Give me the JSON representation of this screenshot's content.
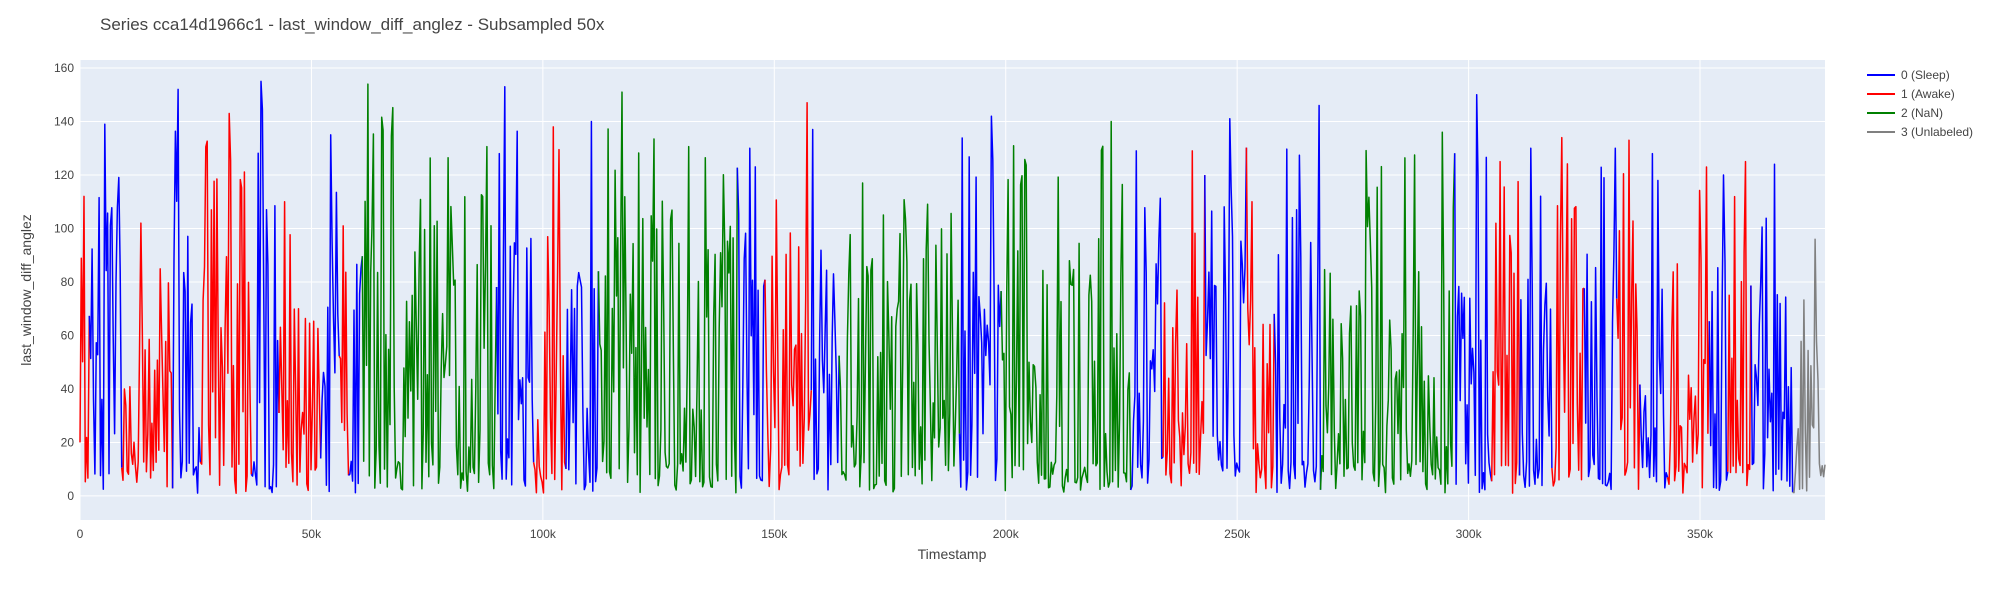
{
  "chart_data": {
    "type": "line",
    "title": "Series cca14d1966c1 - last_window_diff_anglez - Subsampled 50x",
    "xlabel": "Timestamp",
    "ylabel": "last_window_diff_anglez",
    "xlim": [
      0,
      377000
    ],
    "ylim": [
      -9,
      163
    ],
    "grid": true,
    "plot_background": "#e5ecf6",
    "legend_position": "top-right",
    "x_ticks": [
      {
        "value": 0,
        "label": "0"
      },
      {
        "value": 50000,
        "label": "50k"
      },
      {
        "value": 100000,
        "label": "100k"
      },
      {
        "value": 150000,
        "label": "150k"
      },
      {
        "value": 200000,
        "label": "200k"
      },
      {
        "value": 250000,
        "label": "250k"
      },
      {
        "value": 300000,
        "label": "300k"
      },
      {
        "value": 350000,
        "label": "350k"
      }
    ],
    "y_ticks": [
      {
        "value": 0,
        "label": "0"
      },
      {
        "value": 20,
        "label": "20"
      },
      {
        "value": 40,
        "label": "40"
      },
      {
        "value": 60,
        "label": "60"
      },
      {
        "value": 80,
        "label": "80"
      },
      {
        "value": 100,
        "label": "100"
      },
      {
        "value": 120,
        "label": "120"
      },
      {
        "value": 140,
        "label": "140"
      },
      {
        "value": 160,
        "label": "160"
      }
    ],
    "series": [
      {
        "name": "0 (Sleep)",
        "color": "#0000ff"
      },
      {
        "name": "1 (Awake)",
        "color": "#ff0000"
      },
      {
        "name": "2 (NaN)",
        "color": "#008000"
      },
      {
        "name": "3 (Unlabeled)",
        "color": "#808080"
      }
    ],
    "segments": [
      {
        "series": 1,
        "x_start": 0,
        "x_end": 2000,
        "peak": 112
      },
      {
        "series": 0,
        "x_start": 2000,
        "x_end": 9000,
        "peak": 139
      },
      {
        "series": 1,
        "x_start": 9000,
        "x_end": 20000,
        "peak": 102
      },
      {
        "series": 0,
        "x_start": 20000,
        "x_end": 26000,
        "peak": 152
      },
      {
        "series": 1,
        "x_start": 26000,
        "x_end": 37000,
        "peak": 143
      },
      {
        "series": 0,
        "x_start": 37000,
        "x_end": 43000,
        "peak": 155
      },
      {
        "series": 1,
        "x_start": 43000,
        "x_end": 52000,
        "peak": 110
      },
      {
        "series": 0,
        "x_start": 52000,
        "x_end": 56000,
        "peak": 135
      },
      {
        "series": 1,
        "x_start": 56000,
        "x_end": 58000,
        "peak": 134
      },
      {
        "series": 0,
        "x_start": 58000,
        "x_end": 61000,
        "peak": 128
      },
      {
        "series": 2,
        "x_start": 61000,
        "x_end": 90000,
        "peak": 154
      },
      {
        "series": 0,
        "x_start": 90000,
        "x_end": 98000,
        "peak": 153
      },
      {
        "series": 1,
        "x_start": 98000,
        "x_end": 105000,
        "peak": 138
      },
      {
        "series": 0,
        "x_start": 105000,
        "x_end": 112000,
        "peak": 140
      },
      {
        "series": 2,
        "x_start": 112000,
        "x_end": 142000,
        "peak": 151
      },
      {
        "series": 0,
        "x_start": 142000,
        "x_end": 148000,
        "peak": 130
      },
      {
        "series": 1,
        "x_start": 148000,
        "x_end": 158000,
        "peak": 147
      },
      {
        "series": 0,
        "x_start": 158000,
        "x_end": 164000,
        "peak": 137
      },
      {
        "series": 2,
        "x_start": 164000,
        "x_end": 190000,
        "peak": 117
      },
      {
        "series": 0,
        "x_start": 190000,
        "x_end": 199000,
        "peak": 142
      },
      {
        "series": 2,
        "x_start": 199000,
        "x_end": 227000,
        "peak": 140
      },
      {
        "series": 0,
        "x_start": 227000,
        "x_end": 234000,
        "peak": 129
      },
      {
        "series": 1,
        "x_start": 234000,
        "x_end": 243000,
        "peak": 129
      },
      {
        "series": 0,
        "x_start": 243000,
        "x_end": 252000,
        "peak": 141
      },
      {
        "series": 1,
        "x_start": 252000,
        "x_end": 258000,
        "peak": 110
      },
      {
        "series": 0,
        "x_start": 258000,
        "x_end": 268000,
        "peak": 146
      },
      {
        "series": 2,
        "x_start": 268000,
        "x_end": 297000,
        "peak": 136
      },
      {
        "series": 0,
        "x_start": 297000,
        "x_end": 305000,
        "peak": 150
      },
      {
        "series": 1,
        "x_start": 305000,
        "x_end": 311000,
        "peak": 125
      },
      {
        "series": 0,
        "x_start": 311000,
        "x_end": 318000,
        "peak": 130
      },
      {
        "series": 1,
        "x_start": 318000,
        "x_end": 325000,
        "peak": 134
      },
      {
        "series": 0,
        "x_start": 325000,
        "x_end": 332000,
        "peak": 130
      },
      {
        "series": 1,
        "x_start": 332000,
        "x_end": 337000,
        "peak": 133
      },
      {
        "series": 0,
        "x_start": 337000,
        "x_end": 343000,
        "peak": 128
      },
      {
        "series": 1,
        "x_start": 343000,
        "x_end": 352000,
        "peak": 123
      },
      {
        "series": 0,
        "x_start": 352000,
        "x_end": 356000,
        "peak": 120
      },
      {
        "series": 1,
        "x_start": 356000,
        "x_end": 361000,
        "peak": 125
      },
      {
        "series": 0,
        "x_start": 361000,
        "x_end": 370000,
        "peak": 124
      },
      {
        "series": 3,
        "x_start": 370000,
        "x_end": 377000,
        "peak": 96
      }
    ]
  }
}
